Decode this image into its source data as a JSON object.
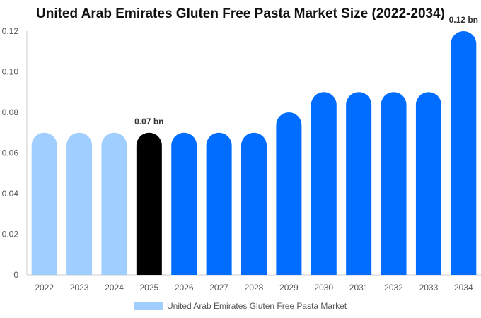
{
  "chart_data": {
    "type": "bar",
    "title": "United Arab Emirates Gluten Free Pasta Market Size (2022-2034)",
    "categories": [
      "2022",
      "2023",
      "2024",
      "2025",
      "2026",
      "2027",
      "2028",
      "2029",
      "2030",
      "2031",
      "2032",
      "2033",
      "2034"
    ],
    "series": [
      {
        "name": "United Arab Emirates Gluten Free Pasta Market",
        "values": [
          0.07,
          0.07,
          0.07,
          0.07,
          0.07,
          0.07,
          0.07,
          0.08,
          0.09,
          0.09,
          0.09,
          0.09,
          0.12
        ]
      }
    ],
    "bar_colors": [
      "#a0cfff",
      "#a0cfff",
      "#a0cfff",
      "#000000",
      "#006dff",
      "#006dff",
      "#006dff",
      "#006dff",
      "#006dff",
      "#006dff",
      "#006dff",
      "#006dff",
      "#006dff"
    ],
    "data_labels": [
      {
        "category": "2025",
        "text": "0.07 bn"
      },
      {
        "category": "2034",
        "text": "0.12 bn"
      }
    ],
    "y_ticks": [
      "0",
      "0.02",
      "0.04",
      "0.06",
      "0.08",
      "0.10",
      "0.12"
    ],
    "ylim": [
      0,
      0.12
    ],
    "xlabel": "",
    "ylabel": "",
    "grid": false,
    "legend_position": "bottom",
    "legend_color": "#a0cfff"
  }
}
